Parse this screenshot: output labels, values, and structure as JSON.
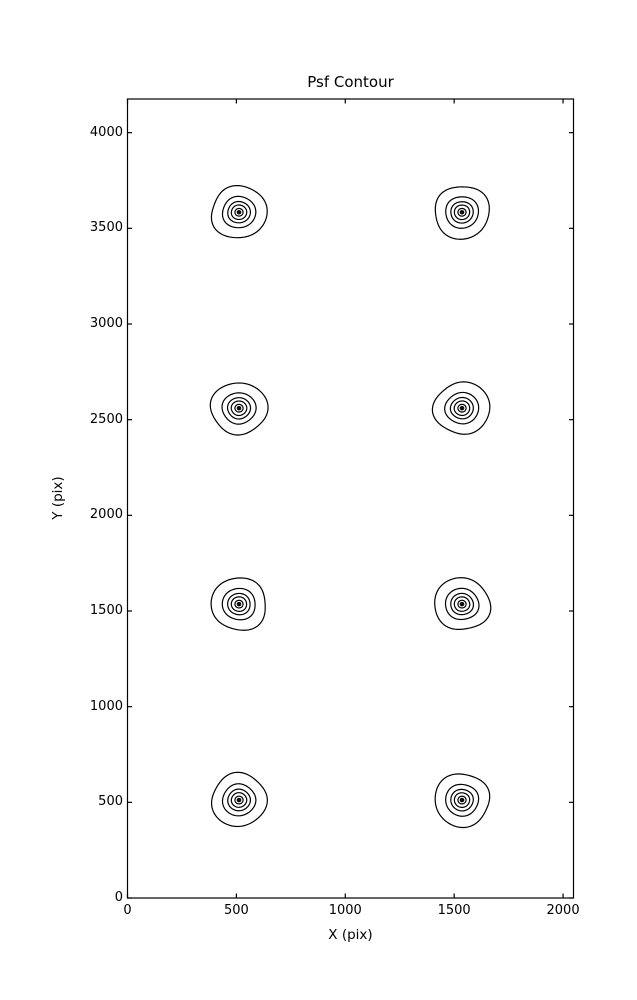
{
  "chart_data": {
    "type": "contour",
    "title": "Psf Contour",
    "xlabel": "X (pix)",
    "ylabel": "Y (pix)",
    "xlim": [
      0,
      2048
    ],
    "ylim": [
      0,
      4176
    ],
    "xticks": [
      0,
      500,
      1000,
      1500,
      2000
    ],
    "yticks": [
      0,
      500,
      1000,
      1500,
      2000,
      2500,
      3000,
      3500,
      4000
    ],
    "grid": false,
    "legend": "none",
    "line_color": "#000000",
    "background_color": "#ffffff",
    "centers": [
      {
        "x": 512,
        "y": 512
      },
      {
        "x": 1536,
        "y": 512
      },
      {
        "x": 512,
        "y": 1536
      },
      {
        "x": 1536,
        "y": 1536
      },
      {
        "x": 512,
        "y": 2560
      },
      {
        "x": 1536,
        "y": 2560
      },
      {
        "x": 512,
        "y": 3584
      },
      {
        "x": 1536,
        "y": 3584
      }
    ],
    "contour_levels_radius_pix": [
      130,
      78,
      53,
      36,
      19,
      8
    ],
    "center_dot": true
  }
}
